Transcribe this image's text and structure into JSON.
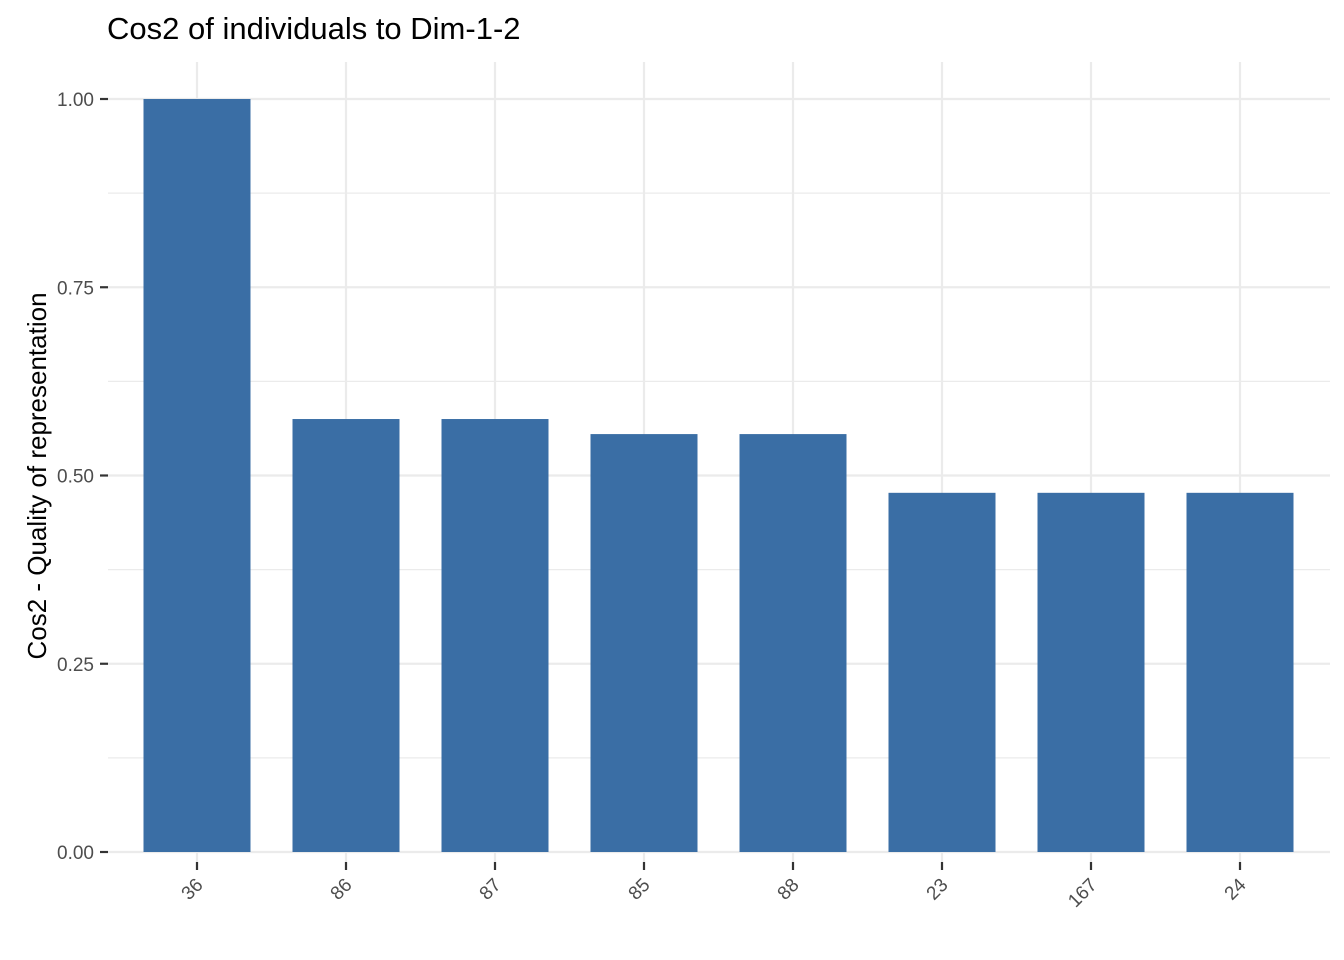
{
  "chart_data": {
    "type": "bar",
    "title": "Cos2 of individuals to Dim-1-2",
    "xlabel": "",
    "ylabel": "Cos2 - Quality of representation",
    "categories": [
      "36",
      "86",
      "87",
      "85",
      "88",
      "23",
      "167",
      "24"
    ],
    "values": [
      1.0,
      0.575,
      0.575,
      0.555,
      0.555,
      0.477,
      0.477,
      0.477
    ],
    "ylim": [
      0,
      1.0
    ],
    "yticks": [
      "0.00",
      "0.25",
      "0.50",
      "0.75",
      "1.00"
    ],
    "grid": true,
    "bar_color": "#3A6EA5",
    "grid_color": "#EBEBEB",
    "tick_color": "#333333"
  }
}
